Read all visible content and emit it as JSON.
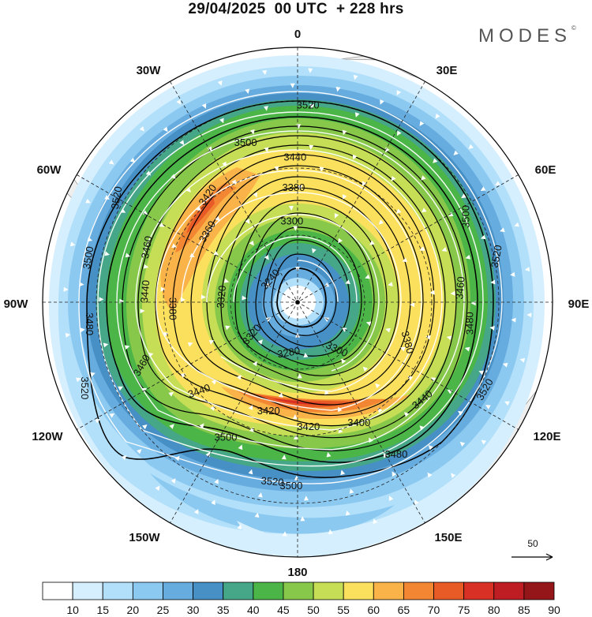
{
  "title": "29/04/2025  00 UTC  + 228 hrs",
  "brand": "MODES",
  "brand_mark": "©",
  "longitude_labels": {
    "n": "0",
    "nne": "30E",
    "ene": "60E",
    "e": "90E",
    "ese": "120E",
    "sse": "150E",
    "s": "180",
    "ssw": "150W",
    "wsw": "120W",
    "w": "90W",
    "wnw": "60W",
    "nnw": "30W"
  },
  "contour_labels": [
    {
      "text": "3520",
      "lon": 3,
      "r": 0.775,
      "rot": 0
    },
    {
      "text": "3500",
      "lon": -18,
      "r": 0.66,
      "rot": 0
    },
    {
      "text": "3440",
      "lon": -1,
      "r": 0.57,
      "rot": 0
    },
    {
      "text": "3380",
      "lon": -2,
      "r": 0.45,
      "rot": 0
    },
    {
      "text": "3420",
      "lon": -40,
      "r": 0.55,
      "rot": -55
    },
    {
      "text": "3360",
      "lon": -52,
      "r": 0.45,
      "rot": -60
    },
    {
      "text": "3300",
      "lon": -4,
      "r": 0.32,
      "rot": 0
    },
    {
      "text": "3240",
      "lon": -50,
      "r": 0.14,
      "rot": -50
    },
    {
      "text": "3520",
      "lon": -60,
      "r": 0.82,
      "rot": -80
    },
    {
      "text": "3460",
      "lon": -70,
      "r": 0.63,
      "rot": -80
    },
    {
      "text": "3500",
      "lon": -78,
      "r": 0.84,
      "rot": -80
    },
    {
      "text": "3440",
      "lon": -86,
      "r": 0.6,
      "rot": -85
    },
    {
      "text": "3380",
      "lon": -93,
      "r": 0.49,
      "rot": 90
    },
    {
      "text": "3320",
      "lon": -86,
      "r": 0.3,
      "rot": -85
    },
    {
      "text": "3480",
      "lon": -96,
      "r": 0.82,
      "rot": 90
    },
    {
      "text": "3460",
      "lon": -112,
      "r": 0.66,
      "rot": -60
    },
    {
      "text": "3520",
      "lon": -112,
      "r": 0.9,
      "rot": 90
    },
    {
      "text": "3440",
      "lon": -132,
      "r": 0.52,
      "rot": -20
    },
    {
      "text": "3320",
      "lon": -125,
      "r": 0.22,
      "rot": -50
    },
    {
      "text": "3280",
      "lon": -170,
      "r": 0.2,
      "rot": -10
    },
    {
      "text": "3300",
      "lon": 140,
      "r": 0.24,
      "rot": 25
    },
    {
      "text": "3380",
      "lon": 110,
      "r": 0.46,
      "rot": 75
    },
    {
      "text": "3420",
      "lon": -165,
      "r": 0.44,
      "rot": 0
    },
    {
      "text": "3420",
      "lon": 175,
      "r": 0.49,
      "rot": 0
    },
    {
      "text": "3400",
      "lon": 153,
      "r": 0.53,
      "rot": 0
    },
    {
      "text": "3440",
      "lon": 128,
      "r": 0.62,
      "rot": -40
    },
    {
      "text": "3480",
      "lon": 147,
      "r": 0.71,
      "rot": 0
    },
    {
      "text": "3500",
      "lon": -178,
      "r": 0.72,
      "rot": 0
    },
    {
      "text": "3520",
      "lon": -172,
      "r": 0.71,
      "rot": 5
    },
    {
      "text": "3500",
      "lon": -152,
      "r": 0.6,
      "rot": 0
    },
    {
      "text": "3500",
      "lon": 63,
      "r": 0.74,
      "rot": -90
    },
    {
      "text": "3520",
      "lon": 77,
      "r": 0.8,
      "rot": -80
    },
    {
      "text": "3460",
      "lon": 85,
      "r": 0.64,
      "rot": -85
    },
    {
      "text": "3480",
      "lon": 97,
      "r": 0.68,
      "rot": -90
    },
    {
      "text": "3520",
      "lon": 115,
      "r": 0.81,
      "rot": -60
    }
  ],
  "colorbar": {
    "ticks": [
      "10",
      "15",
      "20",
      "25",
      "30",
      "35",
      "40",
      "45",
      "50",
      "55",
      "60",
      "65",
      "70",
      "75",
      "80",
      "85",
      "90"
    ],
    "colors": [
      "#ffffff",
      "#d6effe",
      "#b2e0fb",
      "#8cc9f0",
      "#67acdf",
      "#4790c5",
      "#45a688",
      "#4cb548",
      "#87c84a",
      "#c5de55",
      "#fbe05d",
      "#f9b349",
      "#f38632",
      "#e85a26",
      "#d83025",
      "#bd1d23",
      "#951618"
    ]
  },
  "vector_scale": "50"
}
